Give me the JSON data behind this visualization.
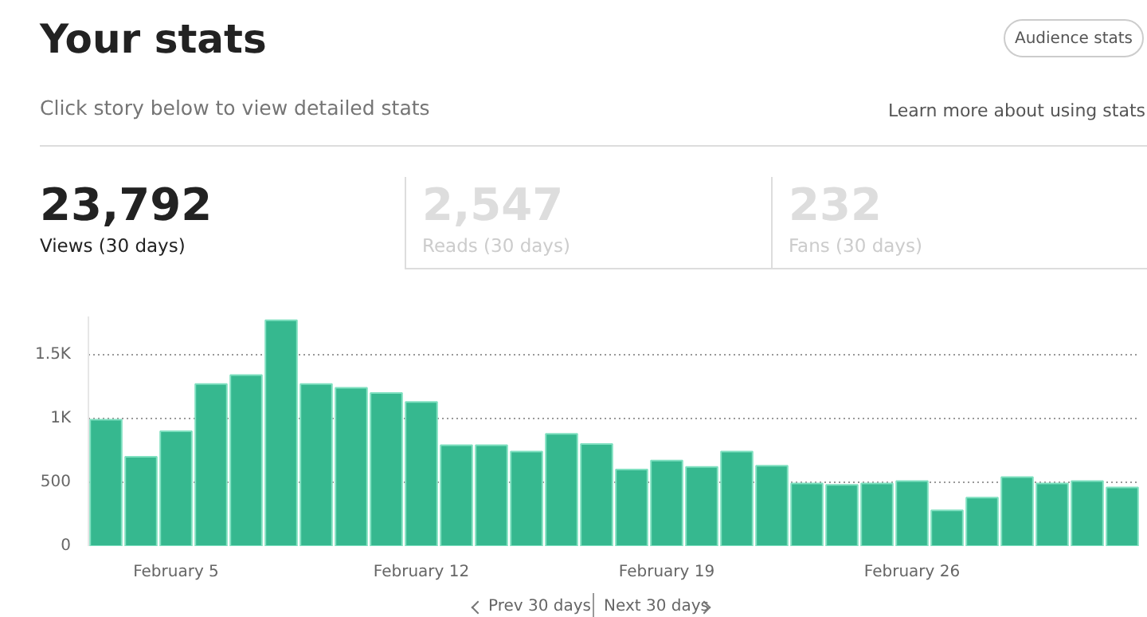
{
  "chart_data": {
    "type": "bar",
    "title": "Your stats",
    "subtitle": "Click story below to view detailed stats",
    "annotations": [
      "Audience stats",
      "Learn more about using stats",
      "23,792",
      "Views (30 days)",
      "2,547",
      "Reads (30 days)",
      "232",
      "Fans (30 days)",
      "Prev 30 days",
      "Next 30 days"
    ],
    "categories": [
      null,
      null,
      "February 5",
      null,
      null,
      null,
      null,
      null,
      null,
      "February 12",
      null,
      null,
      null,
      null,
      null,
      null,
      "February 19",
      null,
      null,
      null,
      null,
      null,
      null,
      "February 26",
      null,
      null,
      null,
      null,
      null,
      null
    ],
    "values": [
      990,
      700,
      900,
      1270,
      1340,
      1770,
      1270,
      1240,
      1200,
      1130,
      790,
      790,
      740,
      880,
      800,
      600,
      670,
      620,
      740,
      630,
      490,
      480,
      490,
      510,
      280,
      380,
      540,
      490,
      510,
      460
    ],
    "color": "#36b88f",
    "ylim": [
      0,
      1800
    ],
    "yticks": [
      0,
      500,
      {
        "value": 1000,
        "label": "1K"
      },
      {
        "value": 1500,
        "label": "1.5K"
      }
    ],
    "grid": "y"
  }
}
